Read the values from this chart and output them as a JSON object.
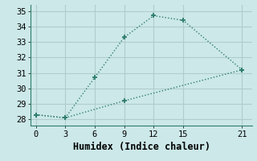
{
  "line1_x": [
    0,
    3,
    6,
    9,
    12,
    15,
    21
  ],
  "line1_y": [
    28.3,
    28.1,
    30.7,
    33.3,
    34.7,
    34.4,
    31.2
  ],
  "line2_x": [
    0,
    3,
    9,
    21
  ],
  "line2_y": [
    28.3,
    28.1,
    29.2,
    31.2
  ],
  "color": "#2e7d6e",
  "bg_color": "#cce8e8",
  "grid_color": "#b8d8d8",
  "xlabel": "Humidex (Indice chaleur)",
  "xlim": [
    -0.5,
    22
  ],
  "ylim": [
    27.6,
    35.4
  ],
  "xticks": [
    0,
    3,
    6,
    9,
    12,
    15,
    21
  ],
  "yticks": [
    28,
    29,
    30,
    31,
    32,
    33,
    34,
    35
  ],
  "xlabel_fontsize": 8.5,
  "tick_fontsize": 7.5
}
